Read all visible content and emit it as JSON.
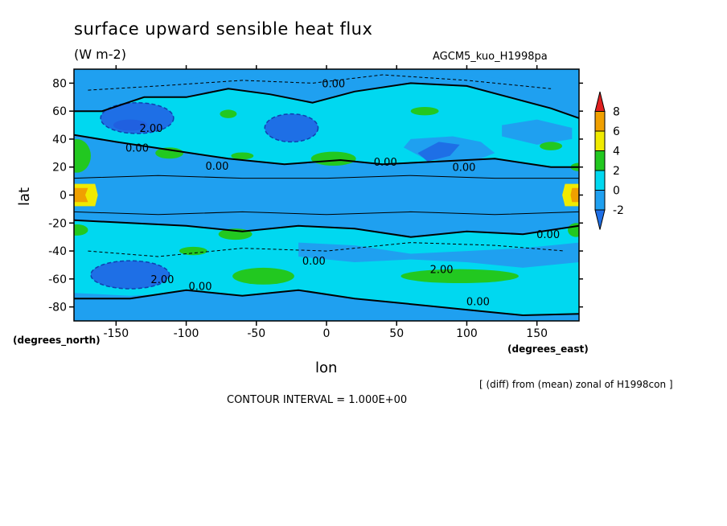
{
  "chart_data": {
    "type": "heatmap",
    "title": "surface upward sensible heat flux",
    "subtitle": "(W m-2)",
    "run_name": "AGCM5_kuo_H1998pa",
    "xlabel": "lon",
    "ylabel": "lat",
    "x_unit_label": "(degrees_east)",
    "y_unit_label": "(degrees_north)",
    "xlim": [
      -180,
      180
    ],
    "ylim": [
      -90,
      90
    ],
    "x_ticks": [
      -150,
      -100,
      -50,
      0,
      50,
      100,
      150
    ],
    "y_ticks": [
      80,
      60,
      40,
      20,
      0,
      -20,
      -40,
      -60,
      -80
    ],
    "x_tick_labels": [
      "-150",
      "-100",
      "-50",
      "0",
      "50",
      "100",
      "150"
    ],
    "y_tick_labels": [
      "80",
      "60",
      "40",
      "20",
      "0",
      "-20",
      "-40",
      "-60",
      "-80"
    ],
    "note": "[ (diff) from (mean) zonal of H1998con ]",
    "contour_interval_text": "CONTOUR INTERVAL = 1.000E+00",
    "colorbar": {
      "levels": [
        -2,
        0,
        2,
        4,
        6,
        8
      ],
      "level_labels": [
        "-2",
        "0",
        "2",
        "4",
        "6",
        "8"
      ],
      "colors": [
        "#1e6fe6",
        "#1fa0f0",
        "#00d8f0",
        "#22c820",
        "#f0ea00",
        "#f0a000",
        "#e02020"
      ]
    },
    "colors": {
      "below_-2": "#1e6fe6",
      "-2_to_0": "#1fa0f0",
      "0_to_2": "#00d8f0",
      "2_to_4": "#22c820",
      "4_to_6": "#f0ea00",
      "6_to_8": "#f0a000",
      "above_8": "#e02020",
      "deep_negative": "#2060e0"
    },
    "contour_labels": [
      {
        "text": "0.00",
        "lon": 5,
        "lat": 80
      },
      {
        "text": "2.00",
        "lon": -125,
        "lat": 48
      },
      {
        "text": "0.00",
        "lon": -135,
        "lat": 34
      },
      {
        "text": "0.00",
        "lon": -78,
        "lat": 21
      },
      {
        "text": "0.00",
        "lon": 42,
        "lat": 24
      },
      {
        "text": "0.00",
        "lon": 98,
        "lat": 20
      },
      {
        "text": "0.00",
        "lon": 158,
        "lat": -28
      },
      {
        "text": "0.00",
        "lon": -9,
        "lat": -47
      },
      {
        "text": "2.00",
        "lon": -117,
        "lat": -60
      },
      {
        "text": "0.00",
        "lon": -90,
        "lat": -65
      },
      {
        "text": "2.00",
        "lon": 82,
        "lat": -53
      },
      {
        "text": "0.00",
        "lon": 108,
        "lat": -76
      }
    ]
  }
}
